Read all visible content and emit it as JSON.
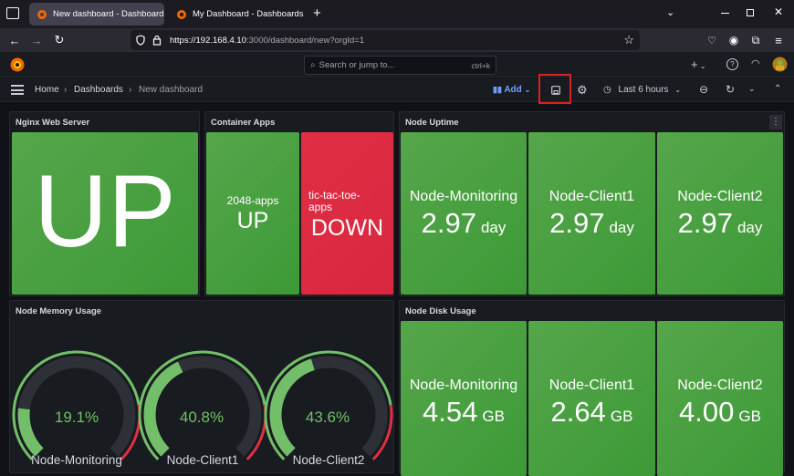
{
  "browser": {
    "tabs": [
      {
        "title": "New dashboard - Dashboards",
        "active": true
      },
      {
        "title": "My Dashboard - Dashboards - G",
        "active": false
      }
    ],
    "url_host": "https://192.168.4.10",
    "url_rest": ":3000/dashboard/new?orgId=1"
  },
  "topbar": {
    "search_placeholder": "Search or jump to...",
    "shortcut": "ctrl+k",
    "plus": "+"
  },
  "subbar": {
    "breadcrumb": [
      "Home",
      "Dashboards",
      "New dashboard"
    ],
    "add_label": "Add",
    "time_range": "Last 6 hours"
  },
  "panels": {
    "nginx": {
      "title": "Nginx Web Server",
      "value": "UP"
    },
    "containers": {
      "title": "Container Apps",
      "items": [
        {
          "name": "2048-apps",
          "value": "UP"
        },
        {
          "name": "tic-tac-toe-apps",
          "value": "DOWN"
        }
      ]
    },
    "uptime": {
      "title": "Node Uptime",
      "items": [
        {
          "name": "Node-Monitoring",
          "value": "2.97",
          "unit": "day"
        },
        {
          "name": "Node-Client1",
          "value": "2.97",
          "unit": "day"
        },
        {
          "name": "Node-Client2",
          "value": "2.97",
          "unit": "day"
        }
      ]
    },
    "memory": {
      "title": "Node Memory Usage",
      "gauges": [
        {
          "name": "Node-Monitoring",
          "label": "19.1%",
          "percent": 19.1
        },
        {
          "name": "Node-Client1",
          "label": "40.8%",
          "percent": 40.8
        },
        {
          "name": "Node-Client2",
          "label": "43.6%",
          "percent": 43.6
        }
      ]
    },
    "disk": {
      "title": "Node Disk Usage",
      "items": [
        {
          "name": "Node-Monitoring",
          "value": "4.54",
          "unit": "GB"
        },
        {
          "name": "Node-Client1",
          "value": "2.64",
          "unit": "GB"
        },
        {
          "name": "Node-Client2",
          "value": "4.00",
          "unit": "GB"
        }
      ]
    }
  },
  "colors": {
    "ok": "#56a64b",
    "bad": "#e02f44",
    "gauge_green": "#73bf69",
    "gauge_track": "#2d3036",
    "highlight": "#e02020"
  }
}
